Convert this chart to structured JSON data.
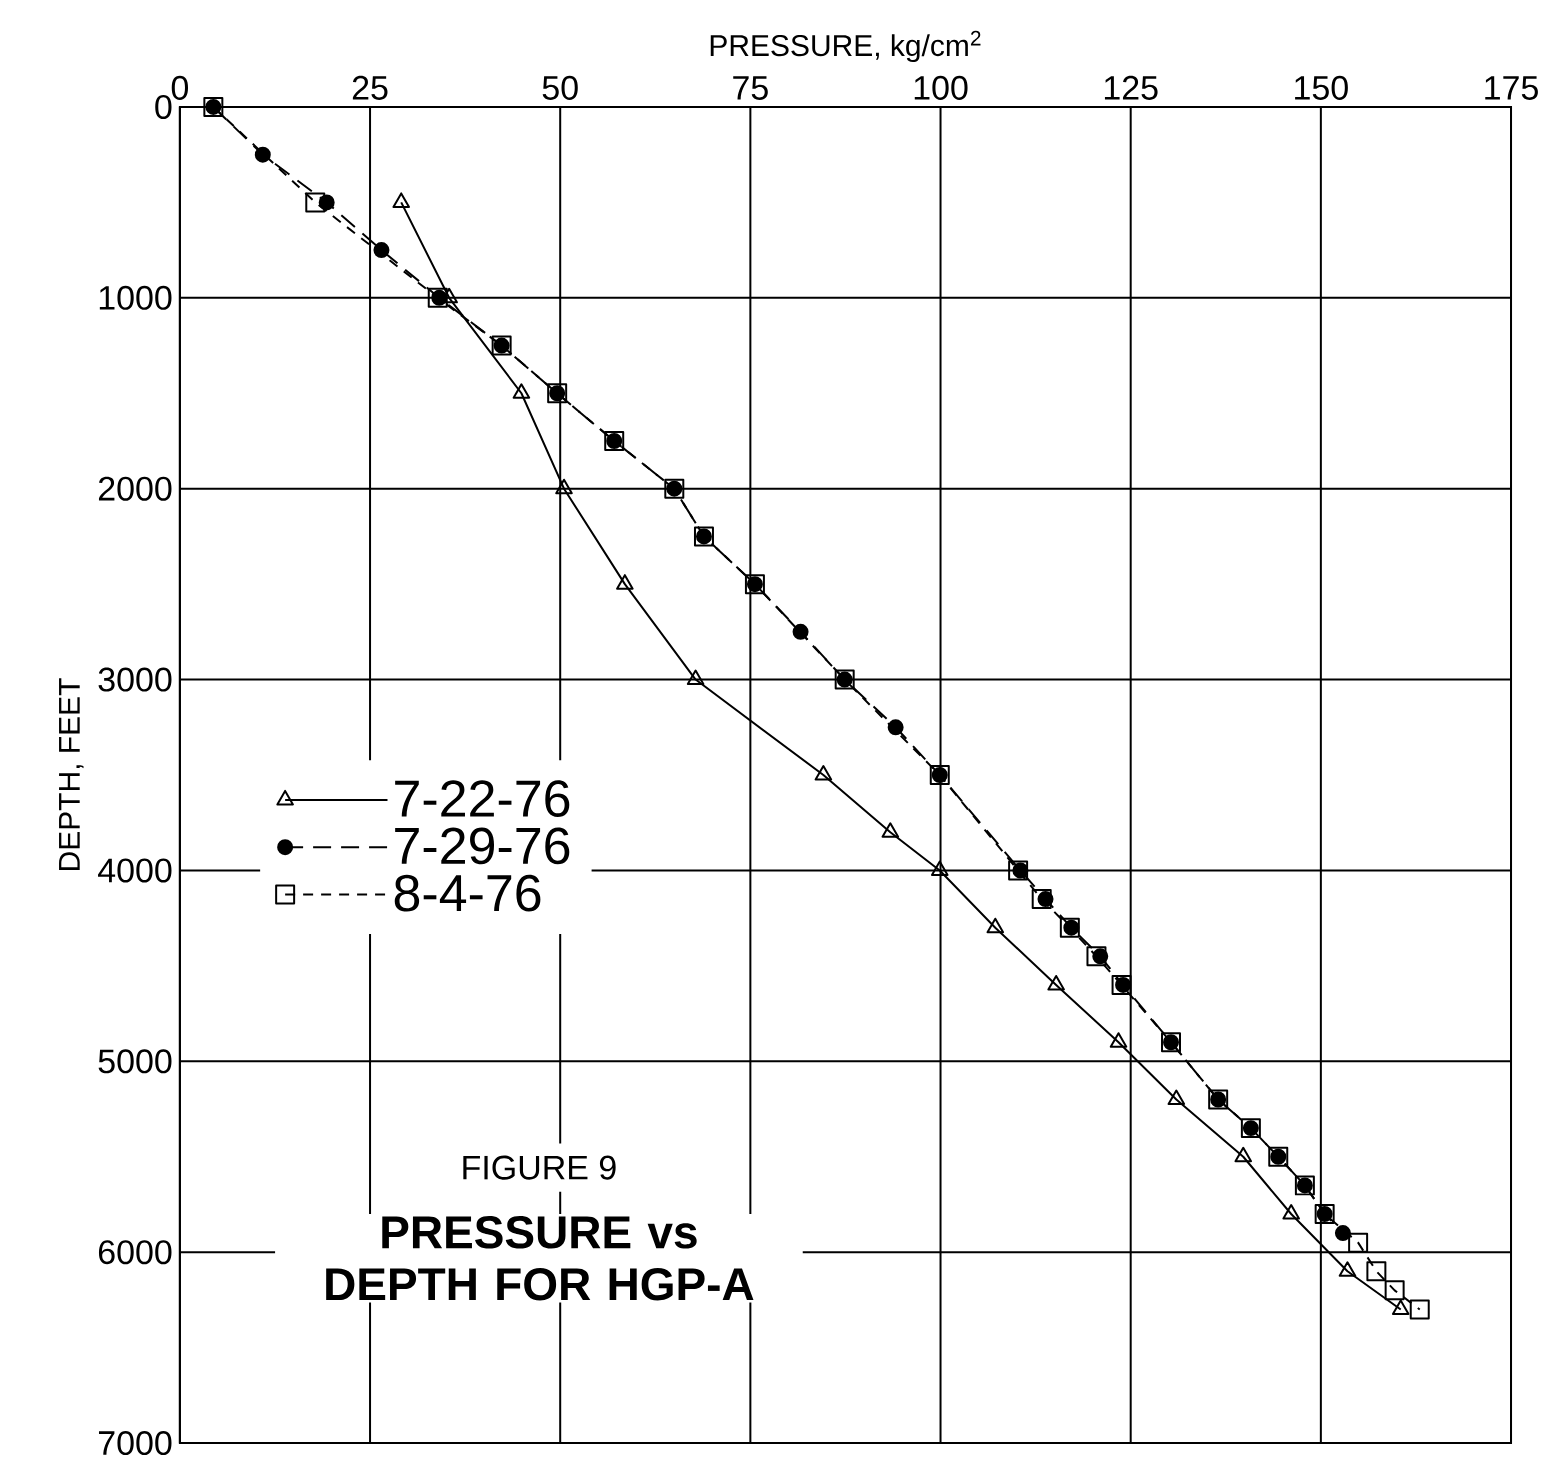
{
  "chart_data": {
    "type": "line",
    "title": "PRESSURE vs DEPTH FOR HGP-A",
    "subtitle": "FIGURE 9",
    "xlabel": "PRESSURE, kg/cm$^{2}$",
    "ylabel": "DEPTH, FEET",
    "xlim": [
      0,
      175
    ],
    "ylim": [
      7000,
      0
    ],
    "xticks": [
      0,
      25,
      50,
      75,
      100,
      125,
      150,
      175
    ],
    "yticks": [
      0,
      1000,
      2000,
      3000,
      4000,
      5000,
      6000,
      7000
    ],
    "grid": true,
    "legend": "left",
    "series": [
      {
        "name": "7-22-76",
        "color": "#000000",
        "marker": "triangle",
        "line_style": "solid",
        "x": [
          29.1,
          35.4,
          44.9,
          50.5,
          58.5,
          67.8,
          84.6,
          93.4,
          99.9,
          107.2,
          115.2,
          123.4,
          131.0,
          139.8,
          146.1,
          153.5,
          160.5
        ],
        "values": [
          500,
          1000,
          1500,
          2000,
          2500,
          3000,
          3500,
          3800,
          4000,
          4300,
          4600,
          4900,
          5200,
          5500,
          5800,
          6100,
          6300
        ]
      },
      {
        "name": "7-29-76",
        "color": "#000000",
        "marker": "circle",
        "line_style": "dashed",
        "x": [
          4.4,
          10.9,
          19.3,
          26.5,
          34.1,
          42.3,
          49.6,
          57.1,
          65.0,
          68.9,
          75.6,
          81.6,
          87.4,
          94.1,
          99.9,
          110.5,
          113.8,
          117.2,
          121.0,
          124.0,
          130.3,
          136.5,
          140.8,
          144.4,
          147.9,
          150.5,
          152.9
        ],
        "values": [
          0,
          250,
          500,
          750,
          1000,
          1250,
          1500,
          1750,
          2000,
          2250,
          2500,
          2750,
          3000,
          3250,
          3500,
          4000,
          4150,
          4300,
          4450,
          4600,
          4900,
          5200,
          5350,
          5500,
          5650,
          5800,
          5900
        ]
      },
      {
        "name": "8-4-76",
        "color": "#000000",
        "marker": "square",
        "line_style": "dotted",
        "x": [
          4.4,
          17.8,
          33.9,
          42.3,
          49.6,
          57.1,
          65.0,
          68.9,
          75.6,
          87.4,
          99.9,
          110.2,
          113.3,
          117.0,
          120.5,
          123.8,
          130.3,
          136.5,
          140.8,
          144.4,
          147.9,
          150.5,
          154.9,
          157.3,
          159.7,
          163.0
        ],
        "values": [
          0,
          500,
          1000,
          1250,
          1500,
          1750,
          2000,
          2250,
          2500,
          3000,
          3500,
          4000,
          4150,
          4300,
          4450,
          4600,
          4900,
          5200,
          5350,
          5500,
          5650,
          5800,
          5950,
          6100,
          6200,
          6300
        ]
      }
    ]
  }
}
